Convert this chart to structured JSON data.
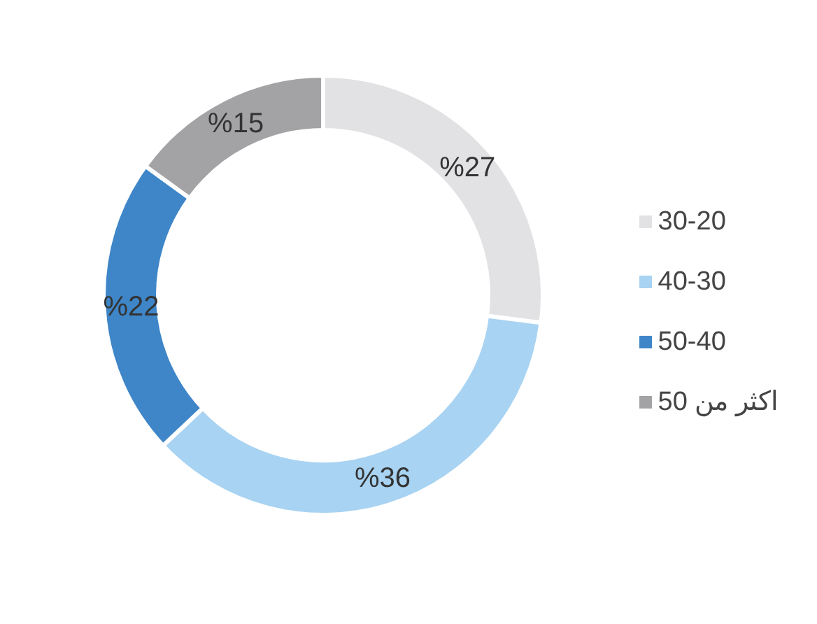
{
  "chart_data": {
    "type": "donut",
    "categories": [
      "30-20",
      "40-30",
      "50-40",
      "اكثر من 50"
    ],
    "values": [
      27,
      36,
      22,
      15
    ],
    "colors": [
      "#e2e2e4",
      "#a8d3f2",
      "#3f86c8",
      "#a3a3a6"
    ],
    "value_labels": [
      "%27",
      "%36",
      "%22",
      "%15"
    ],
    "legend": "right"
  }
}
